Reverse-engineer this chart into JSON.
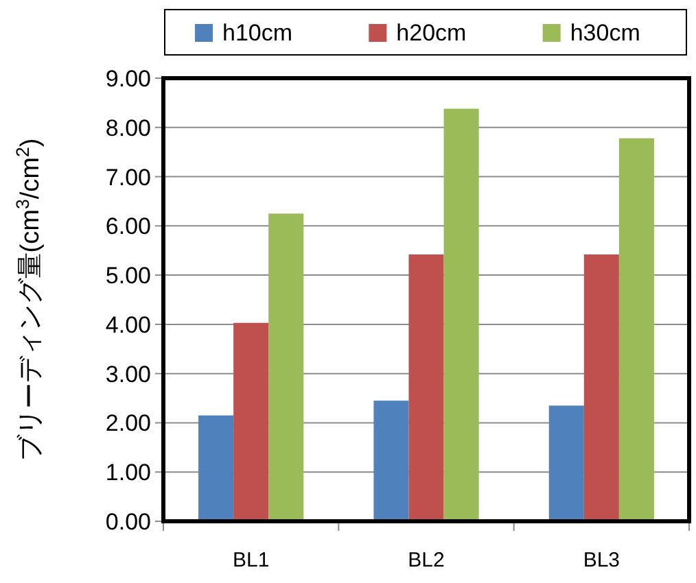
{
  "chart_data": {
    "type": "bar",
    "categories": [
      "BL1",
      "BL2",
      "BL3"
    ],
    "series": [
      {
        "name": "h10cm",
        "color": "#4f81bd",
        "values": [
          2.15,
          2.45,
          2.35
        ]
      },
      {
        "name": "h20cm",
        "color": "#c0504d",
        "values": [
          4.03,
          5.42,
          5.42
        ]
      },
      {
        "name": "h30cm",
        "color": "#9bbb59",
        "values": [
          6.25,
          8.38,
          7.78
        ]
      }
    ],
    "ylabel": "ブリーディング量(cm$^{3}$/cm$^{2}$)",
    "ylim": [
      0,
      9
    ],
    "yticks": [
      {
        "value": 0,
        "label": "0.00"
      },
      {
        "value": 1,
        "label": "1.00"
      },
      {
        "value": 2,
        "label": "2.00"
      },
      {
        "value": 3,
        "label": "3.00"
      },
      {
        "value": 4,
        "label": "4.00"
      },
      {
        "value": 5,
        "label": "5.00"
      },
      {
        "value": 6,
        "label": "6.00"
      },
      {
        "value": 7,
        "label": "7.00"
      },
      {
        "value": 8,
        "label": "8.00"
      },
      {
        "value": 9,
        "label": "9.00"
      }
    ],
    "grid": "y",
    "legend": "top"
  }
}
